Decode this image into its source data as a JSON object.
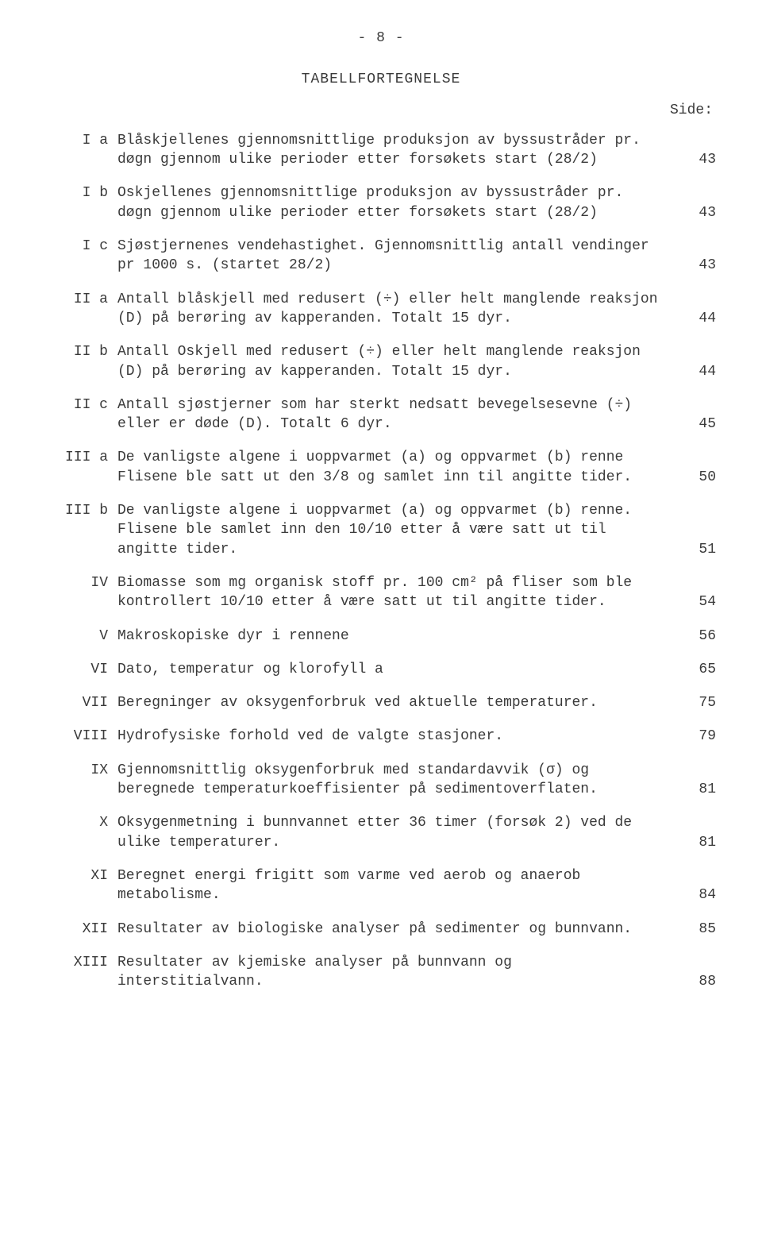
{
  "page_number_header": "- 8 -",
  "title": "TABELLFORTEGNELSE",
  "side_label": "Side:",
  "entries": [
    {
      "label": "I a",
      "desc": "Blåskjellenes gjennomsnittlige produksjon av byssustråder pr. døgn gjennom ulike perioder etter forsøkets start (28/2)",
      "pageno": "43"
    },
    {
      "label": "I b",
      "desc": "Oskjellenes gjennomsnittlige produksjon av byssustråder pr. døgn gjennom ulike perioder etter forsøkets start (28/2)",
      "pageno": "43"
    },
    {
      "label": "I c",
      "desc": "Sjøstjernenes vendehastighet.  Gjennomsnittlig antall vendinger pr 1000 s. (startet 28/2)",
      "pageno": "43"
    },
    {
      "label": "II a",
      "desc": "Antall blåskjell med redusert (÷) eller helt manglende reaksjon (D) på berøring av kapperanden.  Totalt 15 dyr.",
      "pageno": "44"
    },
    {
      "label": "II b",
      "desc": "Antall Oskjell med redusert (÷) eller helt manglende reaksjon (D) på berøring av kapperanden.  Totalt 15 dyr.",
      "pageno": "44"
    },
    {
      "label": "II c",
      "desc": "Antall sjøstjerner som har sterkt nedsatt bevegelsesevne (÷) eller er døde (D).  Totalt 6 dyr.",
      "pageno": "45"
    },
    {
      "label": "III a",
      "desc": "De vanligste algene i uoppvarmet (a) og oppvarmet (b) renne Flisene ble satt ut den 3/8 og samlet inn til angitte tider.",
      "pageno": "50"
    },
    {
      "label": "III b",
      "desc": "De vanligste algene i uoppvarmet (a) og oppvarmet (b) renne. Flisene ble samlet inn den 10/10 etter å være satt ut til angitte tider.",
      "pageno": "51"
    },
    {
      "label": "IV",
      "desc": "Biomasse som mg organisk stoff pr. 100 cm² på fliser som ble kontrollert 10/10 etter å være satt ut til angitte tider.",
      "pageno": "54"
    },
    {
      "label": "V",
      "desc": "Makroskopiske dyr i rennene",
      "pageno": "56"
    },
    {
      "label": "VI",
      "desc": "Dato, temperatur og klorofyll a",
      "pageno": "65"
    },
    {
      "label": "VII",
      "desc": "Beregninger av oksygenforbruk ved aktuelle temperaturer.",
      "pageno": "75"
    },
    {
      "label": "VIII",
      "desc": "Hydrofysiske forhold ved de valgte stasjoner.",
      "pageno": "79"
    },
    {
      "label": "IX",
      "desc": "Gjennomsnittlig oksygenforbruk med standardavvik (σ) og beregnede temperaturkoeffisienter på sedimentoverflaten.",
      "pageno": "81"
    },
    {
      "label": "X",
      "desc": "Oksygenmetning i bunnvannet etter 36 timer (forsøk 2) ved de ulike temperaturer.",
      "pageno": "81"
    },
    {
      "label": "XI",
      "desc": "Beregnet energi frigitt som varme ved aerob  og anaerob metabolisme.",
      "pageno": "84"
    },
    {
      "label": "XII",
      "desc": "Resultater av biologiske analyser på sedimenter og bunnvann.",
      "pageno": "85"
    },
    {
      "label": "XIII",
      "desc": "Resultater av kjemiske analyser på bunnvann og interstitialvann.",
      "pageno": "88"
    }
  ]
}
